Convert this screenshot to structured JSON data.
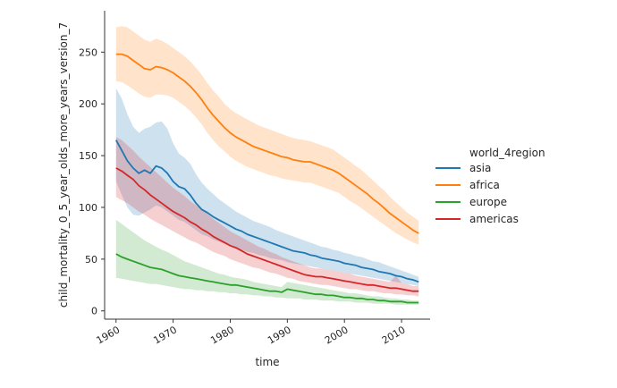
{
  "chart_data": {
    "type": "line",
    "title": "",
    "xlabel": "time",
    "ylabel": "child_mortality_0_5_year_olds_more_years_version_7",
    "xlim": [
      1958,
      2015
    ],
    "ylim": [
      -8,
      290
    ],
    "xticks": [
      1960,
      1970,
      1980,
      1990,
      2000,
      2010
    ],
    "yticks": [
      0,
      50,
      100,
      150,
      200,
      250
    ],
    "legend": {
      "title": "world_4region",
      "position": "right"
    },
    "grid": false,
    "series": [
      {
        "name": "asia",
        "color": "#1f77b4",
        "x": [
          1960,
          1961,
          1962,
          1963,
          1964,
          1965,
          1966,
          1967,
          1968,
          1969,
          1970,
          1971,
          1972,
          1973,
          1974,
          1975,
          1976,
          1977,
          1978,
          1979,
          1980,
          1981,
          1982,
          1983,
          1984,
          1985,
          1986,
          1987,
          1988,
          1989,
          1990,
          1991,
          1992,
          1993,
          1994,
          1995,
          1996,
          1997,
          1998,
          1999,
          2000,
          2001,
          2002,
          2003,
          2004,
          2005,
          2006,
          2007,
          2008,
          2009,
          2010,
          2011,
          2012,
          2013
        ],
        "values": [
          165,
          155,
          145,
          138,
          133,
          136,
          133,
          140,
          138,
          133,
          125,
          120,
          118,
          112,
          104,
          98,
          95,
          91,
          88,
          85,
          82,
          79,
          77,
          74,
          72,
          70,
          68,
          66,
          64,
          62,
          60,
          58,
          57,
          56,
          54,
          53,
          51,
          50,
          49,
          48,
          46,
          45,
          44,
          42,
          41,
          40,
          38,
          37,
          36,
          34,
          33,
          31,
          30,
          28
        ],
        "lower": [
          125,
          112,
          100,
          93,
          92,
          95,
          98,
          102,
          100,
          96,
          92,
          88,
          86,
          82,
          78,
          74,
          72,
          69,
          67,
          65,
          63,
          61,
          59,
          57,
          56,
          54,
          53,
          51,
          50,
          49,
          47,
          46,
          45,
          44,
          43,
          42,
          41,
          40,
          39,
          38,
          37,
          36,
          35,
          34,
          33,
          32,
          31,
          30,
          29,
          28,
          27,
          26,
          25,
          24
        ],
        "upper": [
          215,
          205,
          190,
          178,
          172,
          176,
          178,
          182,
          183,
          176,
          162,
          152,
          148,
          142,
          132,
          124,
          118,
          113,
          108,
          104,
          100,
          96,
          93,
          90,
          87,
          85,
          83,
          81,
          78,
          76,
          74,
          72,
          70,
          68,
          66,
          64,
          62,
          61,
          59,
          58,
          56,
          55,
          53,
          52,
          50,
          48,
          47,
          45,
          43,
          41,
          39,
          37,
          35,
          33
        ]
      },
      {
        "name": "africa",
        "color": "#ff7f0e",
        "x": [
          1960,
          1961,
          1962,
          1963,
          1964,
          1965,
          1966,
          1967,
          1968,
          1969,
          1970,
          1971,
          1972,
          1973,
          1974,
          1975,
          1976,
          1977,
          1978,
          1979,
          1980,
          1981,
          1982,
          1983,
          1984,
          1985,
          1986,
          1987,
          1988,
          1989,
          1990,
          1991,
          1992,
          1993,
          1994,
          1995,
          1996,
          1997,
          1998,
          1999,
          2000,
          2001,
          2002,
          2003,
          2004,
          2005,
          2006,
          2007,
          2008,
          2009,
          2010,
          2011,
          2012,
          2013
        ],
        "values": [
          248,
          248,
          246,
          242,
          238,
          234,
          233,
          236,
          235,
          233,
          230,
          226,
          222,
          217,
          211,
          204,
          196,
          189,
          183,
          177,
          172,
          168,
          165,
          162,
          159,
          157,
          155,
          153,
          151,
          149,
          148,
          146,
          145,
          144,
          144,
          142,
          140,
          138,
          136,
          133,
          129,
          125,
          121,
          117,
          113,
          108,
          104,
          99,
          94,
          90,
          86,
          82,
          78,
          75
        ],
        "lower": [
          222,
          221,
          218,
          214,
          210,
          207,
          206,
          209,
          209,
          208,
          206,
          202,
          198,
          193,
          187,
          180,
          172,
          165,
          159,
          154,
          149,
          145,
          142,
          139,
          137,
          135,
          133,
          131,
          130,
          128,
          127,
          126,
          125,
          124,
          124,
          122,
          120,
          118,
          116,
          114,
          110,
          106,
          103,
          99,
          95,
          91,
          87,
          83,
          79,
          75,
          72,
          69,
          66,
          64
        ],
        "upper": [
          274,
          275,
          274,
          270,
          266,
          262,
          260,
          263,
          261,
          258,
          254,
          250,
          246,
          241,
          235,
          228,
          220,
          213,
          207,
          200,
          195,
          191,
          188,
          185,
          182,
          179,
          177,
          175,
          173,
          171,
          169,
          167,
          166,
          165,
          164,
          162,
          160,
          158,
          156,
          152,
          148,
          144,
          140,
          136,
          131,
          126,
          121,
          116,
          110,
          105,
          100,
          95,
          91,
          87
        ]
      },
      {
        "name": "europe",
        "color": "#2ca02c",
        "x": [
          1960,
          1961,
          1962,
          1963,
          1964,
          1965,
          1966,
          1967,
          1968,
          1969,
          1970,
          1971,
          1972,
          1973,
          1974,
          1975,
          1976,
          1977,
          1978,
          1979,
          1980,
          1981,
          1982,
          1983,
          1984,
          1985,
          1986,
          1987,
          1988,
          1989,
          1990,
          1991,
          1992,
          1993,
          1994,
          1995,
          1996,
          1997,
          1998,
          1999,
          2000,
          2001,
          2002,
          2003,
          2004,
          2005,
          2006,
          2007,
          2008,
          2009,
          2010,
          2011,
          2012,
          2013
        ],
        "values": [
          55,
          52,
          50,
          48,
          46,
          44,
          42,
          41,
          40,
          38,
          36,
          34,
          33,
          32,
          31,
          30,
          29,
          28,
          27,
          26,
          25,
          25,
          24,
          23,
          22,
          21,
          20,
          19,
          19,
          18,
          21,
          20,
          19,
          18,
          17,
          16,
          16,
          15,
          15,
          14,
          13,
          13,
          12,
          12,
          11,
          11,
          10,
          10,
          9,
          9,
          9,
          8,
          8,
          8
        ],
        "lower": [
          32,
          31,
          30,
          29,
          28,
          27,
          26,
          26,
          25,
          24,
          23,
          22,
          21,
          21,
          20,
          20,
          19,
          19,
          18,
          18,
          17,
          17,
          16,
          16,
          15,
          15,
          14,
          14,
          13,
          13,
          12,
          12,
          12,
          11,
          11,
          11,
          10,
          10,
          10,
          9,
          9,
          9,
          8,
          8,
          8,
          7,
          7,
          7,
          7,
          6,
          6,
          6,
          6,
          6
        ],
        "upper": [
          88,
          84,
          80,
          76,
          72,
          68,
          65,
          62,
          59,
          57,
          54,
          51,
          48,
          46,
          44,
          42,
          40,
          38,
          36,
          35,
          33,
          32,
          31,
          30,
          28,
          27,
          26,
          25,
          24,
          23,
          28,
          27,
          26,
          25,
          24,
          23,
          22,
          21,
          20,
          19,
          18,
          17,
          17,
          16,
          15,
          14,
          14,
          13,
          12,
          12,
          11,
          11,
          10,
          10
        ]
      },
      {
        "name": "americas",
        "color": "#d62728",
        "x": [
          1960,
          1961,
          1962,
          1963,
          1964,
          1965,
          1966,
          1967,
          1968,
          1969,
          1970,
          1971,
          1972,
          1973,
          1974,
          1975,
          1976,
          1977,
          1978,
          1979,
          1980,
          1981,
          1982,
          1983,
          1984,
          1985,
          1986,
          1987,
          1988,
          1989,
          1990,
          1991,
          1992,
          1993,
          1994,
          1995,
          1996,
          1997,
          1998,
          1999,
          2000,
          2001,
          2002,
          2003,
          2004,
          2005,
          2006,
          2007,
          2008,
          2009,
          2010,
          2011,
          2012,
          2013
        ],
        "values": [
          138,
          135,
          131,
          127,
          121,
          117,
          112,
          108,
          104,
          100,
          96,
          93,
          90,
          86,
          83,
          79,
          76,
          72,
          69,
          66,
          63,
          61,
          58,
          55,
          53,
          51,
          49,
          47,
          45,
          43,
          41,
          39,
          37,
          35,
          34,
          33,
          33,
          32,
          31,
          30,
          29,
          28,
          27,
          26,
          25,
          25,
          24,
          23,
          22,
          22,
          21,
          20,
          19,
          19
        ],
        "lower": [
          110,
          107,
          104,
          100,
          96,
          93,
          89,
          86,
          83,
          80,
          77,
          74,
          71,
          68,
          66,
          63,
          60,
          57,
          55,
          53,
          50,
          48,
          46,
          44,
          42,
          41,
          39,
          37,
          36,
          34,
          32,
          31,
          29,
          28,
          27,
          26,
          25,
          25,
          24,
          23,
          22,
          21,
          21,
          20,
          19,
          19,
          18,
          17,
          17,
          16,
          16,
          15,
          15,
          14
        ],
        "upper": [
          168,
          165,
          160,
          155,
          149,
          144,
          139,
          134,
          129,
          124,
          119,
          115,
          111,
          106,
          102,
          98,
          94,
          89,
          85,
          81,
          77,
          74,
          71,
          68,
          65,
          62,
          60,
          57,
          55,
          52,
          50,
          48,
          46,
          44,
          42,
          41,
          41,
          40,
          39,
          38,
          37,
          36,
          34,
          33,
          32,
          31,
          30,
          29,
          28,
          34,
          27,
          26,
          24,
          24
        ]
      }
    ]
  }
}
